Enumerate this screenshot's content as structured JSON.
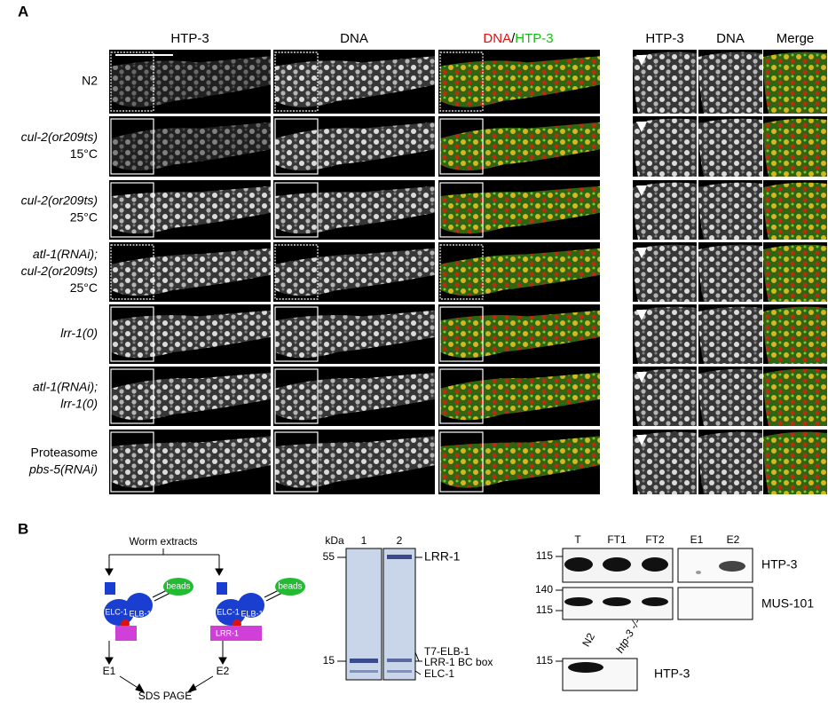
{
  "panel_a": {
    "label": "A",
    "columns": [
      "HTP-3",
      "DNA"
    ],
    "merge_header": [
      "DNA",
      "/",
      "HTP-3"
    ],
    "inset_columns": [
      "HTP-3",
      "DNA",
      "Merge"
    ],
    "rows": [
      [
        {
          "text": "N2",
          "italic": false
        }
      ],
      [
        {
          "text": "cul-2(or209ts)",
          "italic": true
        },
        {
          "text": "15°C",
          "italic": false
        }
      ],
      [
        {
          "text": "cul-2(or209ts)",
          "italic": true
        },
        {
          "text": "25°C",
          "italic": false
        }
      ],
      [
        {
          "text": "atl-1(RNAi);",
          "italic": true
        },
        {
          "text": "cul-2(or209ts)",
          "italic": true
        },
        {
          "text": "25°C",
          "italic": false
        }
      ],
      [
        {
          "text": "lrr-1(0)",
          "italic": true
        }
      ],
      [
        {
          "text": "atl-1(RNAi);",
          "italic": true
        },
        {
          "text": "lrr-1(0)",
          "italic": true
        }
      ],
      [
        {
          "text": "Proteasome",
          "italic": false
        },
        {
          "text": "pbs-5(RNAi)",
          "italic": true
        }
      ]
    ]
  },
  "panel_b": {
    "label": "B",
    "scheme": {
      "source": "Worm extracts",
      "beads": [
        "beads",
        "beads"
      ],
      "elc": [
        "ELC-1",
        "ELC-1"
      ],
      "elb": [
        "ELB-1",
        "ELB-1"
      ],
      "bait": "LRR-1",
      "eluates": [
        "E1",
        "E2"
      ],
      "analysis": "SDS PAGE"
    },
    "gel": {
      "unit": "kDa",
      "lanes": [
        "1",
        "2"
      ],
      "markers": [
        "55",
        "15"
      ],
      "bands": [
        "LRR-1",
        "T7-ELB-1",
        "LRR-1 BC box",
        "ELC-1"
      ]
    },
    "western": {
      "lanes": [
        "T",
        "FT1",
        "FT2",
        "E1",
        "E2"
      ],
      "markers_top": [
        "115"
      ],
      "markers_mid": [
        "140",
        "115"
      ],
      "blots": [
        "HTP-3",
        "MUS-101"
      ],
      "control_lanes": [
        "N2",
        "htp-3 -/-"
      ],
      "control_marker": "115",
      "control_blot": "HTP-3"
    }
  }
}
